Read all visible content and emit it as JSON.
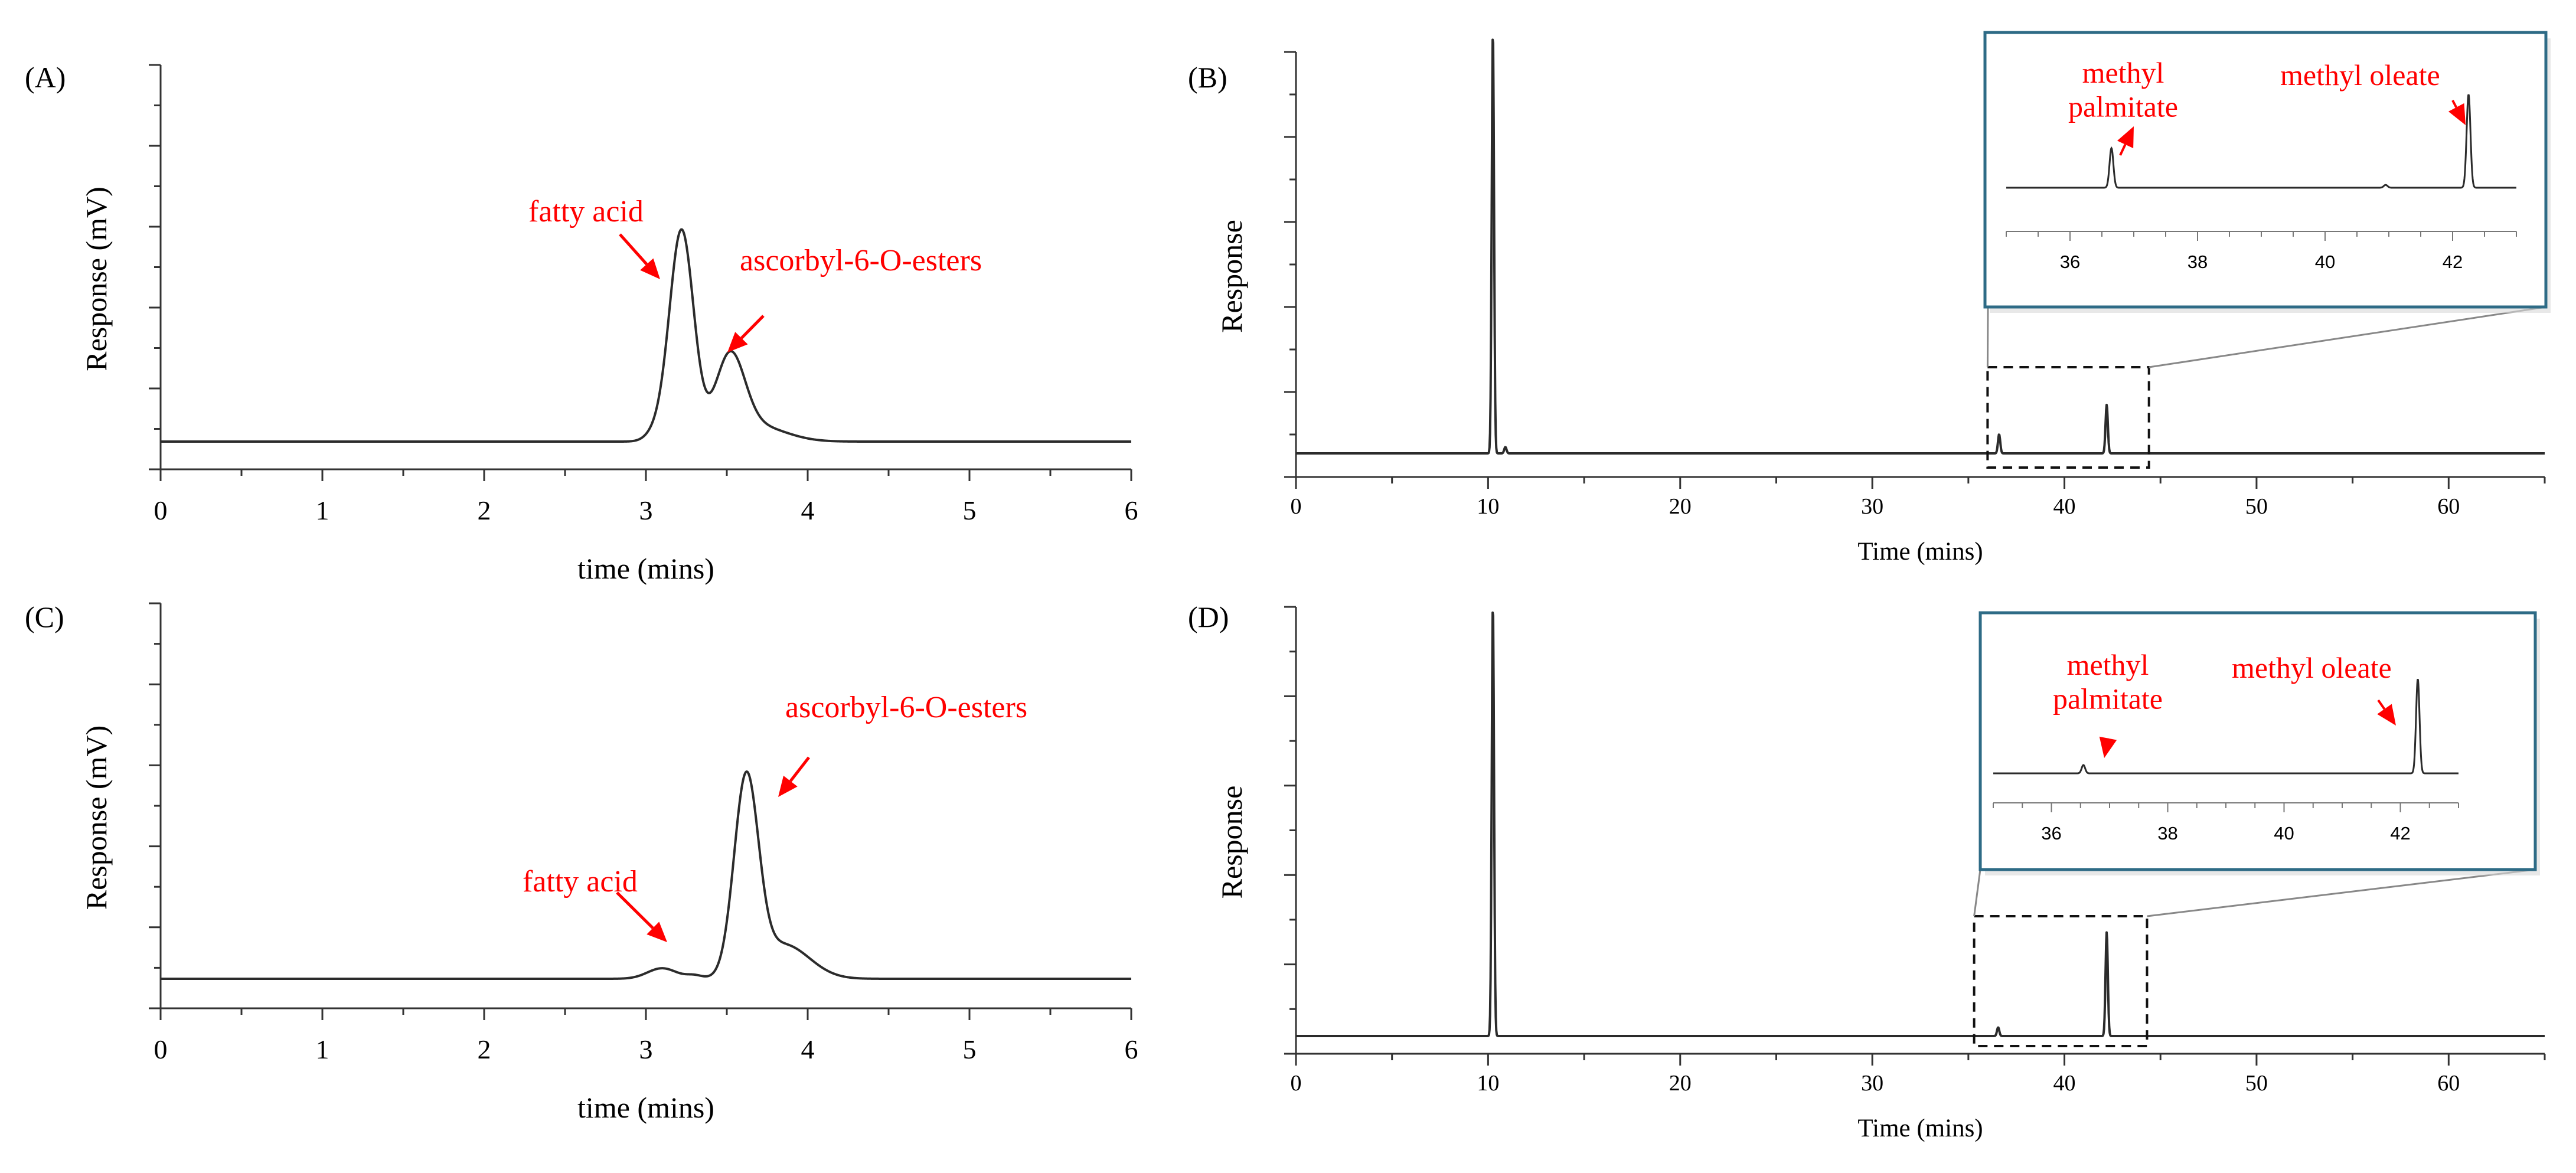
{
  "colors": {
    "trace": "#2b2b2b",
    "axis": "#333333",
    "annotation": "#ff0000",
    "inset_border": "#2e6b86",
    "connector": "#888888"
  },
  "chart_data": [
    {
      "id": "A",
      "type": "line",
      "panel_label": "(A)",
      "title": "",
      "xlabel": "time (mins)",
      "ylabel": "Response (mV)",
      "xlim": [
        0,
        6
      ],
      "ylim": [
        0,
        1
      ],
      "y_tick_labels_shown": false,
      "x_ticks": [
        0,
        1,
        2,
        3,
        4,
        5,
        6
      ],
      "grid": false,
      "peaks": [
        {
          "center": 3.22,
          "height": 0.82,
          "sigma": 0.075
        },
        {
          "center": 3.52,
          "height": 0.31,
          "sigma": 0.09
        },
        {
          "center": 3.68,
          "height": 0.06,
          "sigma": 0.18
        },
        {
          "center": 3.06,
          "height": 0.03,
          "sigma": 0.06
        }
      ],
      "annotations": [
        {
          "text": "fatty acid",
          "x": 3.25,
          "y": 0.62
        },
        {
          "text": "ascorbyl-6-O-esters",
          "x": 3.62,
          "y": 0.32
        }
      ]
    },
    {
      "id": "B",
      "type": "line",
      "panel_label": "(B)",
      "title": "",
      "xlabel": "Time (mins)",
      "ylabel": "Response",
      "xlim": [
        0,
        65
      ],
      "ylim": [
        0,
        1
      ],
      "y_tick_labels_shown": false,
      "x_ticks": [
        0,
        10,
        20,
        30,
        40,
        50,
        60
      ],
      "grid": false,
      "peaks": [
        {
          "center": 10.25,
          "height": 1.0,
          "sigma": 0.06
        },
        {
          "center": 10.9,
          "height": 0.015,
          "sigma": 0.06
        },
        {
          "center": 36.6,
          "height": 0.045,
          "sigma": 0.06
        },
        {
          "center": 42.2,
          "height": 0.115,
          "sigma": 0.06
        }
      ],
      "zoom_box": {
        "x": [
          36,
          44.4
        ]
      },
      "inset": {
        "xlim": [
          35,
          43
        ],
        "x_ticks": [
          36,
          38,
          40,
          42
        ],
        "peaks": [
          {
            "center": 36.65,
            "height": 0.28,
            "sigma": 0.03
          },
          {
            "center": 40.95,
            "height": 0.02,
            "sigma": 0.03
          },
          {
            "center": 42.25,
            "height": 0.66,
            "sigma": 0.03
          }
        ],
        "annotations": [
          {
            "text": "methyl\npalmitate",
            "x": 36.75,
            "y": 0.3
          },
          {
            "text": "methyl oleate",
            "x": 42.15,
            "y": 0.66
          }
        ]
      }
    },
    {
      "id": "C",
      "type": "line",
      "panel_label": "(C)",
      "title": "",
      "xlabel": "time (mins)",
      "ylabel": "Response (mV)",
      "xlim": [
        0,
        6
      ],
      "ylim": [
        0,
        1
      ],
      "y_tick_labels_shown": false,
      "x_ticks": [
        0,
        1,
        2,
        3,
        4,
        5,
        6
      ],
      "grid": false,
      "peaks": [
        {
          "center": 3.62,
          "height": 0.74,
          "sigma": 0.075
        },
        {
          "center": 3.85,
          "height": 0.13,
          "sigma": 0.16
        },
        {
          "center": 3.1,
          "height": 0.04,
          "sigma": 0.09
        },
        {
          "center": 3.3,
          "height": 0.012,
          "sigma": 0.05
        }
      ],
      "annotations": [
        {
          "text": "fatty acid",
          "x": 3.12,
          "y": 0.06
        },
        {
          "text": "ascorbyl-6-O-esters",
          "x": 3.8,
          "y": 0.52
        }
      ]
    },
    {
      "id": "D",
      "type": "line",
      "panel_label": "(D)",
      "title": "",
      "xlabel": "Time (mins)",
      "ylabel": "Response",
      "xlim": [
        0,
        65
      ],
      "ylim": [
        0,
        1
      ],
      "y_tick_labels_shown": false,
      "x_ticks": [
        0,
        10,
        20,
        30,
        40,
        50,
        60
      ],
      "grid": false,
      "peaks": [
        {
          "center": 10.25,
          "height": 1.0,
          "sigma": 0.06
        },
        {
          "center": 36.55,
          "height": 0.02,
          "sigma": 0.06
        },
        {
          "center": 42.2,
          "height": 0.24,
          "sigma": 0.06
        }
      ],
      "zoom_box": {
        "x": [
          35.3,
          44.3
        ]
      },
      "inset": {
        "xlim": [
          35,
          43
        ],
        "x_ticks": [
          36,
          38,
          40,
          42
        ],
        "peaks": [
          {
            "center": 36.55,
            "height": 0.06,
            "sigma": 0.03
          },
          {
            "center": 42.3,
            "height": 0.68,
            "sigma": 0.03
          }
        ],
        "annotations": [
          {
            "text": "methyl\npalmitate",
            "x": 36.65,
            "y": 0.08
          },
          {
            "text": "methyl oleate",
            "x": 42.2,
            "y": 0.68
          }
        ]
      }
    }
  ]
}
